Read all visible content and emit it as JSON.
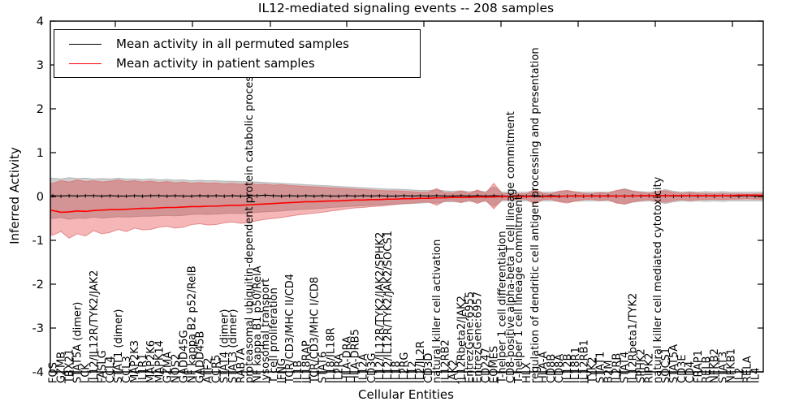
{
  "title": "IL12-mediated signaling events -- 208 samples",
  "axes": {
    "ylabel": "Inferred Activity",
    "xlabel": "Cellular Entities",
    "yticks": [
      4,
      3,
      2,
      1,
      0,
      -1,
      -2,
      -3,
      -4
    ],
    "ylim": [
      -4,
      4
    ]
  },
  "legend": {
    "items": [
      {
        "label": "Mean activity in all permuted samples",
        "color": "#000000"
      },
      {
        "label": "Mean activity in patient samples",
        "color": "#ff0000"
      }
    ]
  },
  "colors": {
    "patient_line": "#ff0000",
    "permuted_line": "#000000",
    "patient_band": "#dd2222",
    "permuted_band": "#888888",
    "frame": "#000000"
  },
  "chart_data": {
    "type": "line",
    "title": "IL12-mediated signaling events -- 208 samples",
    "xlabel": "Cellular Entities",
    "ylabel": "Inferred Activity",
    "ylim": [
      -4,
      4
    ],
    "grid": false,
    "legend_position": "upper left",
    "categories": [
      "FOS",
      "GZMB",
      "TBX21",
      "STAT5A (dimer)",
      "LCK",
      "IL12/IL12R/TYK2/JAK2",
      "FASLG",
      "CCL4",
      "STAT1 (dimer)",
      "CCL3",
      "MAP2K3",
      "IL1R1",
      "MAP2K6",
      "MAPK14",
      "GZMA",
      "NOS2",
      "GADD45G",
      "NF kappa B2 p52/RelB",
      "GADD45B",
      "ATF2",
      "CCR5",
      "STAT4 (dimer)",
      "STAT3 (dimer)",
      "RAB7A",
      "proteasomal ubiquitin-dependent protein catabolic process",
      "NF kappa B1 p50/RelA",
      "lysosomal transport",
      "T cell proliferation",
      "IFNG",
      "TCR/CD3/MHC II/CD4",
      "IL1B",
      "IL18RAP",
      "TCR/CD3/MHC I/CD8",
      "STAT6",
      "IL18/IL18R",
      "IL2RA",
      "HLA-DRA",
      "HLA-DRB5",
      "IL12A",
      "CD3G",
      "IL12/IL12R/TYK2/JAK2/SPHK2",
      "IL12/IL12R/TYK2/JAK2/SOCS1",
      "IL18",
      "IL2RG",
      "IL12",
      "IL2/IL2R",
      "CD3D",
      "natural killer cell activation",
      "IL12RB2",
      "JAK2",
      "IL12Rbeta2/JAK2",
      "EntrezGene:6955",
      "EntrezGene:6957",
      "CD247",
      "EOMES",
      "T-helper 1 cell differentiation",
      "CD8-positive alpha-beta T cell lineage commitment",
      "T-helper 1 cell lineage commitment",
      "HLX",
      "regulation of dendritic cell antigen processing and presentation",
      "HLA-A",
      "CD8B",
      "CD8A",
      "IL12B",
      "IL18R1",
      "IL12RB1",
      "TYK2",
      "STAT1",
      "B2M",
      "IL2RB",
      "STAT4",
      "IL12Rbeta1/TYK2",
      "SPHK2",
      "RIPK2",
      "natural killer cell mediated cytotoxicity",
      "SOCS1",
      "STAT5A",
      "CD3E",
      "CD4",
      "FRAP1",
      "RELB",
      "NFKB2",
      "STAT3",
      "NFKB1",
      "IL2",
      "RELA",
      "IL4"
    ],
    "series": [
      {
        "name": "Mean activity in all permuted samples",
        "color": "#000000",
        "values": [
          0.02,
          0.01,
          0.02,
          0.01,
          0.02,
          0.02,
          0.01,
          0.02,
          0.01,
          0.01,
          0.02,
          0.01,
          0.02,
          0.02,
          0.01,
          0.02,
          0.01,
          0.01,
          0.02,
          0.01,
          0.02,
          0.01,
          0.02,
          0.01,
          0.01,
          0.02,
          0.03,
          0.02,
          0.01,
          0.02,
          0.01,
          0.02,
          0.01,
          0.02,
          0.01,
          0.01,
          0.02,
          0.01,
          0.02,
          0.01,
          0.02,
          0.01,
          0.01,
          0.02,
          0.01,
          0.02,
          0.01,
          0.02,
          0.01,
          0.01,
          0.02,
          0.01,
          0.02,
          0.01,
          0.02,
          0.01,
          0.01,
          0.02,
          0.01,
          0.02,
          0.01,
          0.02,
          0.01,
          0.01,
          0.02,
          0.01,
          0.02,
          0.01,
          0.02,
          0.01,
          0.01,
          0.02,
          0.01,
          0.02,
          0.01,
          0.02,
          0.01,
          0.01,
          0.02,
          0.01,
          0.02,
          0.01,
          0.02,
          0.01,
          0.01,
          0.02,
          0.01
        ]
      },
      {
        "name": "Mean activity in patient samples",
        "color": "#ff0000",
        "values": [
          -0.32,
          -0.36,
          -0.35,
          -0.33,
          -0.34,
          -0.32,
          -0.31,
          -0.3,
          -0.3,
          -0.29,
          -0.28,
          -0.27,
          -0.27,
          -0.26,
          -0.25,
          -0.25,
          -0.24,
          -0.23,
          -0.23,
          -0.22,
          -0.22,
          -0.21,
          -0.2,
          -0.2,
          -0.19,
          -0.18,
          -0.17,
          -0.16,
          -0.15,
          -0.14,
          -0.13,
          -0.12,
          -0.12,
          -0.11,
          -0.1,
          -0.1,
          -0.09,
          -0.08,
          -0.08,
          -0.07,
          -0.07,
          -0.06,
          -0.06,
          -0.05,
          -0.05,
          -0.04,
          -0.04,
          -0.03,
          -0.03,
          -0.02,
          -0.02,
          -0.02,
          -0.01,
          -0.01,
          -0.01,
          0.0,
          0.0,
          0.0,
          0.0,
          0.0,
          0.0,
          0.0,
          0.0,
          0.01,
          0.01,
          0.01,
          0.01,
          0.01,
          0.01,
          0.01,
          0.01,
          0.01,
          0.02,
          0.02,
          0.02,
          0.02,
          0.02,
          0.02,
          0.02,
          0.02,
          0.02,
          0.02,
          0.02,
          0.02,
          0.03,
          0.03,
          0.03
        ]
      }
    ],
    "bands": [
      {
        "name": "permuted samples range",
        "color": "#888888",
        "upper": [
          0.42,
          0.4,
          0.43,
          0.41,
          0.42,
          0.4,
          0.41,
          0.4,
          0.42,
          0.4,
          0.4,
          0.39,
          0.4,
          0.38,
          0.39,
          0.37,
          0.38,
          0.36,
          0.37,
          0.36,
          0.36,
          0.35,
          0.35,
          0.34,
          0.34,
          0.33,
          0.32,
          0.31,
          0.3,
          0.29,
          0.28,
          0.27,
          0.26,
          0.25,
          0.24,
          0.23,
          0.22,
          0.21,
          0.2,
          0.19,
          0.18,
          0.17,
          0.17,
          0.16,
          0.15,
          0.14,
          0.14,
          0.15,
          0.13,
          0.12,
          0.13,
          0.11,
          0.13,
          0.11,
          0.22,
          0.1,
          0.1,
          0.1,
          0.1,
          0.13,
          0.1,
          0.1,
          0.11,
          0.12,
          0.11,
          0.1,
          0.1,
          0.1,
          0.1,
          0.13,
          0.18,
          0.13,
          0.11,
          0.1,
          0.12,
          0.16,
          0.12,
          0.1,
          0.11,
          0.1,
          0.11,
          0.1,
          0.11,
          0.1,
          0.1,
          0.1,
          0.1
        ],
        "lower": [
          -0.5,
          -0.48,
          -0.52,
          -0.49,
          -0.5,
          -0.47,
          -0.49,
          -0.48,
          -0.46,
          -0.47,
          -0.46,
          -0.45,
          -0.45,
          -0.44,
          -0.43,
          -0.44,
          -0.43,
          -0.41,
          -0.4,
          -0.41,
          -0.4,
          -0.39,
          -0.38,
          -0.39,
          -0.38,
          -0.36,
          -0.35,
          -0.34,
          -0.33,
          -0.31,
          -0.3,
          -0.29,
          -0.28,
          -0.27,
          -0.25,
          -0.24,
          -0.23,
          -0.22,
          -0.21,
          -0.2,
          -0.19,
          -0.18,
          -0.18,
          -0.17,
          -0.16,
          -0.15,
          -0.14,
          -0.15,
          -0.12,
          -0.12,
          -0.13,
          -0.11,
          -0.13,
          -0.11,
          -0.22,
          -0.1,
          -0.1,
          -0.1,
          -0.1,
          -0.13,
          -0.1,
          -0.1,
          -0.11,
          -0.12,
          -0.11,
          -0.1,
          -0.1,
          -0.1,
          -0.1,
          -0.13,
          -0.18,
          -0.13,
          -0.11,
          -0.1,
          -0.12,
          -0.16,
          -0.12,
          -0.1,
          -0.11,
          -0.1,
          -0.11,
          -0.1,
          -0.11,
          -0.1,
          -0.1,
          -0.1,
          -0.1
        ]
      },
      {
        "name": "patient samples range",
        "color": "#dd2222",
        "upper": [
          0.3,
          0.36,
          0.33,
          0.38,
          0.34,
          0.36,
          0.33,
          0.35,
          0.38,
          0.34,
          0.36,
          0.33,
          0.35,
          0.32,
          0.34,
          0.31,
          0.33,
          0.3,
          0.32,
          0.3,
          0.31,
          0.29,
          0.3,
          0.28,
          0.3,
          0.27,
          0.28,
          0.26,
          0.27,
          0.25,
          0.24,
          0.23,
          0.22,
          0.21,
          0.2,
          0.19,
          0.18,
          0.17,
          0.16,
          0.15,
          0.14,
          0.13,
          0.13,
          0.12,
          0.11,
          0.1,
          0.1,
          0.18,
          0.09,
          0.08,
          0.13,
          0.07,
          0.15,
          0.07,
          0.3,
          0.07,
          0.06,
          0.06,
          0.06,
          0.16,
          0.07,
          0.06,
          0.12,
          0.14,
          0.1,
          0.07,
          0.06,
          0.09,
          0.07,
          0.14,
          0.16,
          0.12,
          0.09,
          0.07,
          0.11,
          0.13,
          0.09,
          0.07,
          0.09,
          0.07,
          0.07,
          0.06,
          0.07,
          0.06,
          0.06,
          0.05,
          0.06
        ],
        "lower": [
          -0.88,
          -0.8,
          -0.95,
          -0.85,
          -0.9,
          -0.78,
          -0.85,
          -0.82,
          -0.75,
          -0.8,
          -0.72,
          -0.76,
          -0.75,
          -0.7,
          -0.68,
          -0.72,
          -0.7,
          -0.64,
          -0.62,
          -0.65,
          -0.64,
          -0.6,
          -0.58,
          -0.61,
          -0.6,
          -0.55,
          -0.52,
          -0.5,
          -0.48,
          -0.45,
          -0.42,
          -0.4,
          -0.38,
          -0.36,
          -0.33,
          -0.31,
          -0.28,
          -0.26,
          -0.25,
          -0.23,
          -0.22,
          -0.2,
          -0.18,
          -0.16,
          -0.15,
          -0.13,
          -0.12,
          -0.2,
          -0.1,
          -0.09,
          -0.14,
          -0.08,
          -0.16,
          -0.08,
          -0.28,
          -0.07,
          -0.07,
          -0.06,
          -0.06,
          -0.17,
          -0.07,
          -0.06,
          -0.12,
          -0.15,
          -0.1,
          -0.07,
          -0.06,
          -0.09,
          -0.07,
          -0.15,
          -0.17,
          -0.12,
          -0.09,
          -0.07,
          -0.11,
          -0.13,
          -0.09,
          -0.07,
          -0.09,
          -0.07,
          -0.07,
          -0.06,
          -0.07,
          -0.06,
          -0.06,
          -0.05,
          -0.06
        ]
      }
    ]
  }
}
